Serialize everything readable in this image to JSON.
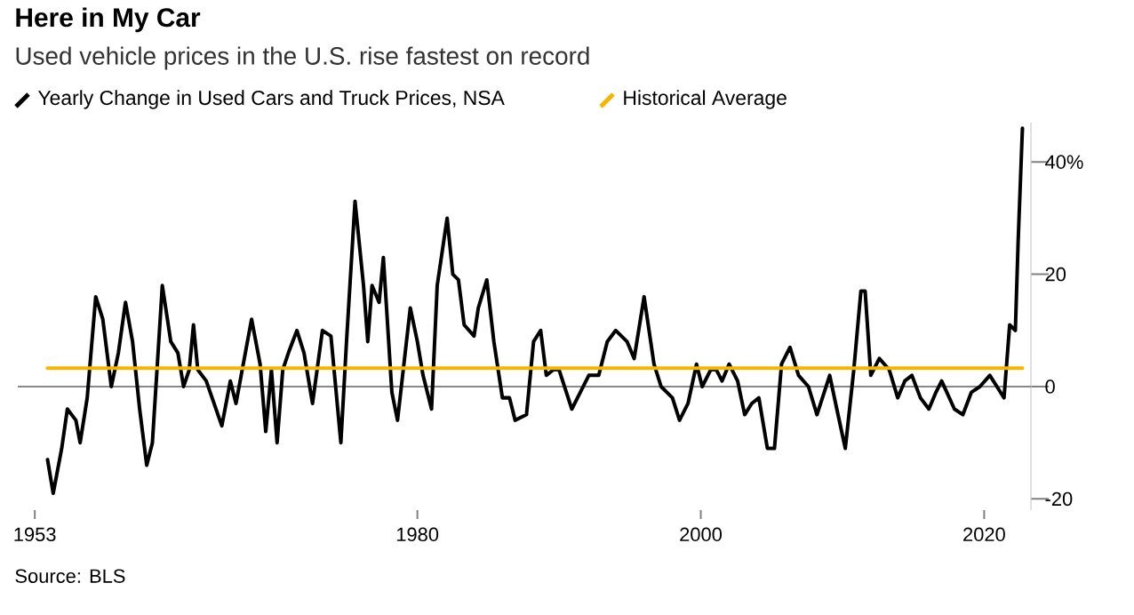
{
  "chart_data": {
    "type": "line",
    "title": "Here in My Car",
    "subtitle": "Used vehicle prices in the U.S. rise fastest on record",
    "annotations": [
      "Source: BLS"
    ],
    "legend": "top left",
    "xlim": [
      1951.8,
      2023.3
    ],
    "xticks": [
      1953,
      1980,
      2000,
      2020
    ],
    "ylim": [
      -22,
      47
    ],
    "yticks": [
      {
        "value": 40,
        "label": "40%"
      },
      20,
      0,
      -20
    ],
    "ref_lines": [
      {
        "axis": "y",
        "value": 0,
        "color": "#888888"
      }
    ],
    "series": [
      {
        "name": "Yearly Change in Used Cars and Truck Prices, NSA",
        "color": "#000000",
        "x": [
          1953.9,
          1954.3,
          1954.9,
          1955.3,
          1955.9,
          1956.2,
          1956.7,
          1957.3,
          1957.8,
          1958.4,
          1958.9,
          1959.4,
          1959.9,
          1960.4,
          1960.9,
          1961.3,
          1962.0,
          1962.6,
          1963.1,
          1963.5,
          1963.9,
          1964.2,
          1964.5,
          1965.1,
          1966.2,
          1966.8,
          1967.2,
          1968.3,
          1968.9,
          1969.3,
          1969.7,
          1970.1,
          1970.5,
          1970.9,
          1971.5,
          1972.0,
          1972.6,
          1973.3,
          1973.9,
          1974.6,
          1975.0,
          1975.6,
          1976.2,
          1976.5,
          1976.8,
          1977.3,
          1977.6,
          1978.2,
          1978.6,
          1979.5,
          1980.0,
          1980.4,
          1981.0,
          1981.4,
          1982.1,
          1982.5,
          1982.9,
          1983.3,
          1984.0,
          1984.3,
          1984.9,
          1985.4,
          1986.0,
          1986.5,
          1986.9,
          1987.7,
          1988.2,
          1988.7,
          1989.1,
          1989.6,
          1990.0,
          1990.9,
          1991.5,
          1992.1,
          1992.8,
          1993.4,
          1994.0,
          1994.8,
          1995.3,
          1996.0,
          1996.7,
          1997.2,
          1998.0,
          1998.5,
          1999.1,
          1999.7,
          2000.1,
          2000.7,
          2001.1,
          2001.5,
          2002.0,
          2002.6,
          2003.1,
          2003.6,
          2004.1,
          2004.7,
          2005.2,
          2005.7,
          2006.3,
          2006.9,
          2007.6,
          2008.2,
          2009.1,
          2009.6,
          2010.2,
          2010.8,
          2011.3,
          2011.6,
          2012.0,
          2012.6,
          2013.3,
          2013.9,
          2014.4,
          2014.9,
          2015.5,
          2016.1,
          2016.6,
          2017.0,
          2017.9,
          2018.5,
          2019.1,
          2019.7,
          2020.4,
          2020.9,
          2021.4,
          2021.8,
          2022.2,
          2022.4,
          2022.7
        ],
        "values": [
          -13,
          -19,
          -11,
          -4,
          -6,
          -10,
          -2,
          16,
          12,
          0,
          6,
          15,
          8,
          -4,
          -14,
          -10,
          18,
          8,
          6,
          0,
          3,
          11,
          3,
          1,
          -7,
          1,
          -3,
          12,
          4,
          -8,
          3,
          -10,
          3,
          6,
          10,
          6,
          -3,
          10,
          9,
          -10,
          8,
          33,
          18,
          8,
          18,
          15,
          23,
          -1,
          -6,
          14,
          8,
          2,
          -4,
          18,
          30,
          20,
          19,
          11,
          9,
          14,
          19,
          8,
          -2,
          -2,
          -6,
          -5,
          8,
          10,
          2,
          3,
          3,
          -4,
          -1,
          2,
          2,
          8,
          10,
          8,
          5,
          16,
          4,
          0,
          -2,
          -6,
          -3,
          4,
          0,
          3,
          3,
          1,
          4,
          1,
          -5,
          -3,
          -2,
          -11,
          -11,
          4,
          7,
          2,
          0,
          -5,
          2,
          -4,
          -11,
          3,
          17,
          17,
          2,
          5,
          3,
          -2,
          1,
          2,
          -2,
          -4,
          -1,
          1,
          -4,
          -5,
          -1,
          0,
          2,
          0,
          -2,
          11,
          10,
          26,
          46
        ]
      },
      {
        "name": "Historical Average",
        "color": "#f7b500",
        "x": [
          1953.9,
          2022.7
        ],
        "values": [
          3.3,
          3.3
        ]
      }
    ]
  }
}
